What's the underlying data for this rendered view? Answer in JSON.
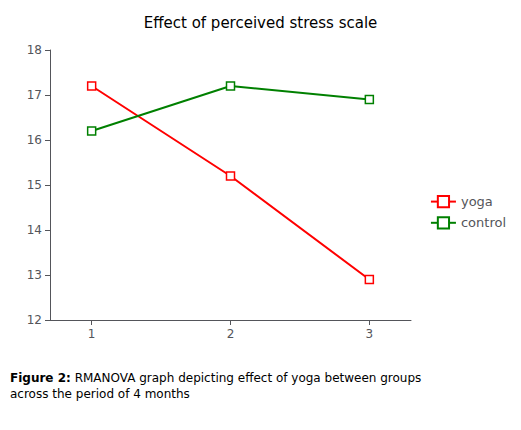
{
  "chart_data": {
    "type": "line",
    "title": "Effect of perceived stress scale",
    "x": [
      1,
      2,
      3
    ],
    "series": [
      {
        "name": "yoga",
        "color": "#FF0000",
        "values": [
          17.2,
          15.2,
          12.9
        ],
        "marker": "square"
      },
      {
        "name": "control",
        "color": "#008000",
        "values": [
          16.2,
          17.2,
          16.9
        ],
        "marker": "square"
      }
    ],
    "xlim": [
      0.7,
      3.3
    ],
    "xticks": [
      1,
      2,
      3
    ],
    "ylim": [
      12,
      18
    ],
    "yticks": [
      12,
      13,
      14,
      15,
      16,
      17,
      18
    ],
    "grid": false,
    "legend": "right",
    "annotations": [
      "Figure 2:",
      " RMANOVA graph depicting effect of yoga between groups\nacross the period of 4 months"
    ]
  }
}
